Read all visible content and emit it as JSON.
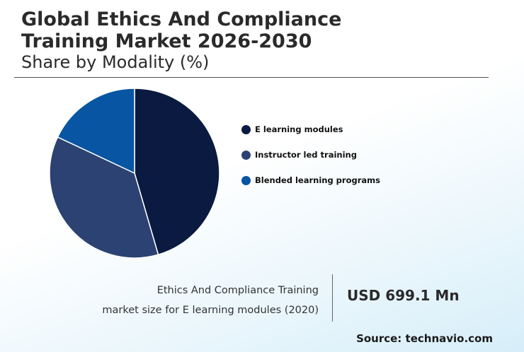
{
  "header": {
    "title_line1": "Global Ethics And Compliance",
    "title_line2": "Training Market 2026-2030",
    "subtitle": "Share by Modality (%)"
  },
  "chart_data": {
    "type": "pie",
    "title": "Global Ethics And Compliance Training Market 2026-2030",
    "subtitle": "Share by Modality (%)",
    "categories": [
      "E learning modules",
      "Instructor led training",
      "Blended learning programs"
    ],
    "values": [
      45.5,
      36.5,
      18.0
    ],
    "colors": [
      "#0a1a40",
      "#2b4272",
      "#0755a3"
    ],
    "legend_position": "right"
  },
  "market_size": {
    "label_line1": "Ethics And Compliance Training",
    "label_line2": "market size for E learning modules (2020)",
    "value": "USD 699.1 Mn"
  },
  "source": "Source: technavio.com"
}
